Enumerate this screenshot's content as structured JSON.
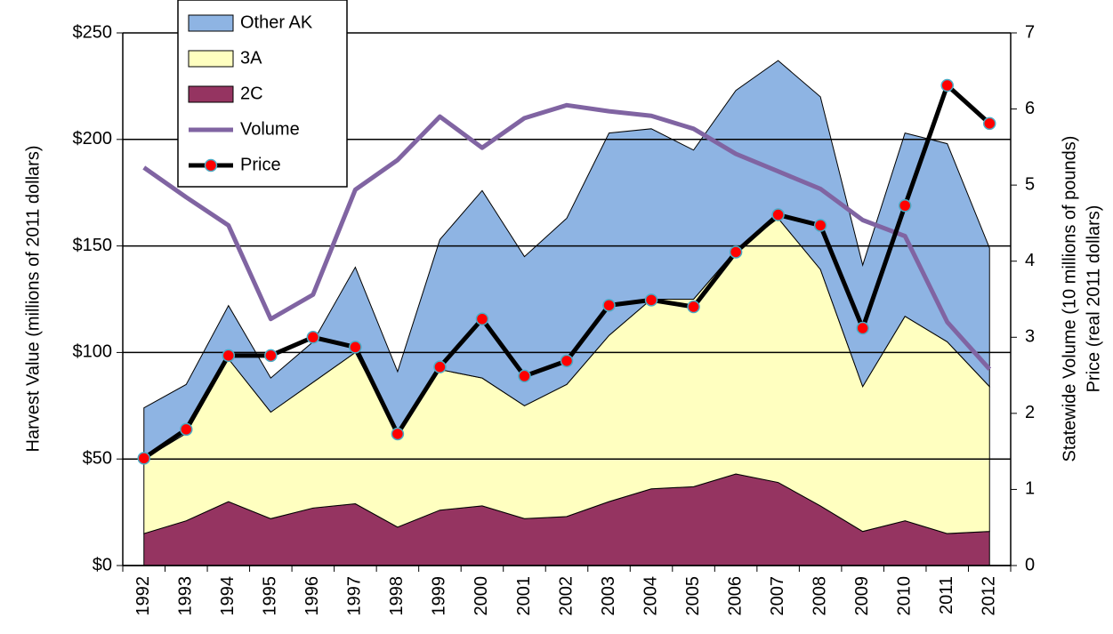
{
  "chart_data": {
    "type": "stacked_area_line",
    "y_label": "Harvest  Value (millions of 2011 dollars)",
    "y2_label": [
      "Statewide Volume (10 millions of pounds)",
      "Price (real 2011 dollars)"
    ],
    "categories": [
      "1992",
      "1993",
      "1994",
      "1995",
      "1996",
      "1997",
      "1998",
      "1999",
      "2000",
      "2001",
      "2002",
      "2003",
      "2004",
      "2005",
      "2006",
      "2007",
      "2008",
      "2009",
      "2010",
      "2011",
      "2012"
    ],
    "series": [
      {
        "name": "2C",
        "color": "#953461",
        "kind": "area",
        "values": [
          15,
          21,
          30,
          22,
          27,
          29,
          18,
          26,
          28,
          22,
          23,
          30,
          36,
          37,
          43,
          39,
          28,
          16,
          21,
          15,
          16
        ]
      },
      {
        "name": "3A",
        "color": "#ffffc0",
        "kind": "area",
        "values": [
          35,
          41,
          67,
          50,
          59,
          71,
          44,
          66,
          60,
          53,
          62,
          78,
          89,
          88,
          105,
          124,
          111,
          68,
          96,
          90,
          68
        ]
      },
      {
        "name": "Other AK",
        "color": "#8eb4e3",
        "kind": "area",
        "values": [
          24,
          23,
          25,
          16,
          19,
          40,
          29,
          61,
          88,
          70,
          78,
          95,
          80,
          70,
          75,
          74,
          81,
          57,
          86,
          93,
          65
        ]
      },
      {
        "name": "Volume",
        "color": "#8064a2",
        "kind": "line",
        "axis": "y2",
        "values": [
          5.23,
          4.84,
          4.47,
          3.24,
          3.56,
          4.94,
          5.33,
          5.9,
          5.49,
          5.88,
          6.05,
          5.97,
          5.91,
          5.74,
          5.41,
          5.18,
          4.95,
          4.54,
          4.33,
          3.2,
          2.58
        ]
      },
      {
        "name": "Price",
        "color": "#000000",
        "marker_color": "#ff0000",
        "kind": "line_marker",
        "axis": "y2",
        "values": [
          1.41,
          1.79,
          2.76,
          2.76,
          3.0,
          2.87,
          1.73,
          2.61,
          3.24,
          2.49,
          2.69,
          3.42,
          3.49,
          3.4,
          4.12,
          4.61,
          4.47,
          3.12,
          4.73,
          6.31,
          5.81
        ]
      }
    ],
    "ylim": [
      0,
      250
    ],
    "yticks": [
      {
        "value": 0,
        "label": "$0"
      },
      {
        "value": 50,
        "label": "$50"
      },
      {
        "value": 100,
        "label": "$100"
      },
      {
        "value": 150,
        "label": "$150"
      },
      {
        "value": 200,
        "label": "$200"
      },
      {
        "value": 250,
        "label": "$250"
      }
    ],
    "y2lim": [
      0,
      7
    ],
    "y2ticks": [
      0,
      1,
      2,
      3,
      4,
      5,
      6,
      7
    ],
    "grid": true,
    "legend": "top-left"
  }
}
